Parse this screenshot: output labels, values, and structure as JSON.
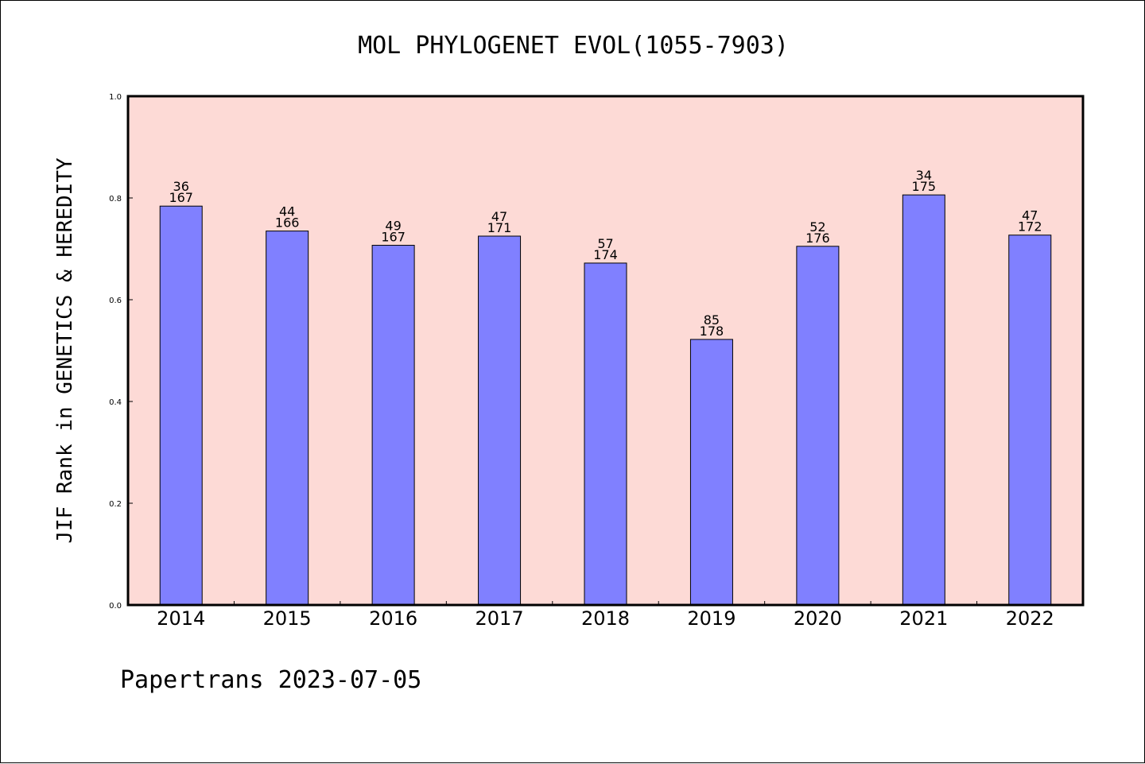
{
  "chart_data": {
    "type": "bar",
    "title": "MOL PHYLOGENET EVOL(1055-7903)",
    "xlabel": "",
    "ylabel": "JIF Rank in GENETICS & HEREDITY",
    "ylim": [
      0.0,
      1.0
    ],
    "yticks": [
      "0.0",
      "0.2",
      "0.4",
      "0.6",
      "0.8",
      "1.0"
    ],
    "ytick_values": [
      0.0,
      0.2,
      0.4,
      0.6,
      0.8,
      1.0
    ],
    "categories": [
      "2014",
      "2015",
      "2016",
      "2017",
      "2018",
      "2019",
      "2020",
      "2021",
      "2022"
    ],
    "values": [
      0.784,
      0.735,
      0.707,
      0.725,
      0.672,
      0.522,
      0.705,
      0.806,
      0.727
    ],
    "rank": [
      "36",
      "44",
      "49",
      "47",
      "57",
      "85",
      "52",
      "34",
      "47"
    ],
    "total": [
      "167",
      "166",
      "167",
      "171",
      "174",
      "178",
      "176",
      "175",
      "172"
    ],
    "grid": false,
    "legend": "none",
    "colors": {
      "plot_background": "#fddad6",
      "bar_fill": "#8080ff",
      "bar_edge": "#000000",
      "axis": "#000000"
    }
  },
  "footer": {
    "text": "Papertrans 2023-07-05"
  }
}
